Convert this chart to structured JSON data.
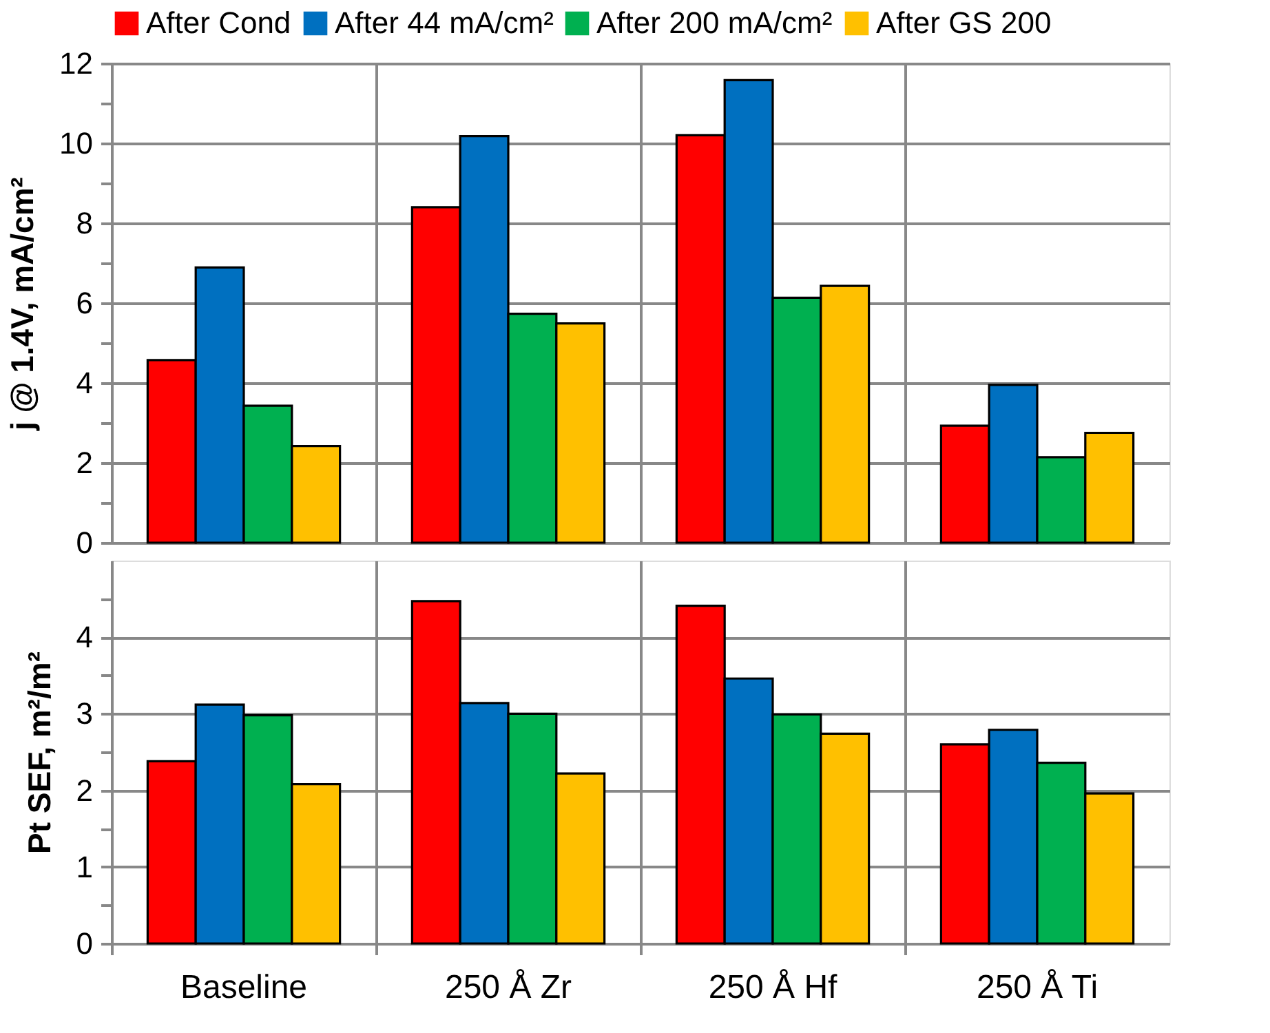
{
  "chart_data": [
    {
      "type": "bar",
      "ylabel": "j @ 1.4V, mA/cm²",
      "categories": [
        null,
        null,
        null,
        null
      ],
      "tick_labels": "y",
      "legend": "top",
      "grid": true,
      "ylim": [
        0,
        12
      ],
      "yticks": [
        0,
        {
          "value": 1,
          "label": null
        },
        2,
        {
          "value": 3,
          "label": null
        },
        4,
        {
          "value": 5,
          "label": null
        },
        6,
        {
          "value": 7,
          "label": null
        },
        8,
        {
          "value": 9,
          "label": null
        },
        10,
        {
          "value": 11,
          "label": null
        },
        12
      ],
      "series": [
        {
          "name": "After Cond",
          "color": "#ff0000",
          "values": [
            4.57,
            8.4,
            10.2,
            2.93
          ]
        },
        {
          "name": "After 44 mA/cm²",
          "color": "#0070c0",
          "values": [
            6.89,
            10.18,
            11.58,
            3.95
          ]
        },
        {
          "name": "After 200 mA/cm²",
          "color": "#00b050",
          "values": [
            3.43,
            5.73,
            6.13,
            2.14
          ]
        },
        {
          "name": "After GS 200",
          "color": "#ffc000",
          "values": [
            2.42,
            5.49,
            6.43,
            2.75
          ]
        }
      ]
    },
    {
      "type": "bar",
      "ylabel": "Pt SEF, m²/m²",
      "categories": [
        "Baseline",
        "250 Å Zr",
        "250 Å Hf",
        "250 Å Ti"
      ],
      "grid": true,
      "ylim": [
        0,
        5
      ],
      "yticks": [
        0,
        {
          "value": 0.5,
          "label": null
        },
        1,
        {
          "value": 1.5,
          "label": null
        },
        2,
        {
          "value": 2.5,
          "label": null
        },
        3,
        {
          "value": 3.5,
          "label": null
        },
        4,
        {
          "value": 4.5,
          "label": null
        }
      ],
      "series": [
        {
          "color": "#ff0000",
          "values": [
            2.38,
            4.47,
            4.41,
            2.6
          ]
        },
        {
          "color": "#0070c0",
          "values": [
            3.12,
            3.14,
            3.46,
            2.79
          ]
        },
        {
          "color": "#00b050",
          "values": [
            2.98,
            3.0,
            2.99,
            2.36
          ]
        },
        {
          "color": "#ffc000",
          "values": [
            2.08,
            2.22,
            2.74,
            1.96
          ]
        }
      ]
    }
  ]
}
